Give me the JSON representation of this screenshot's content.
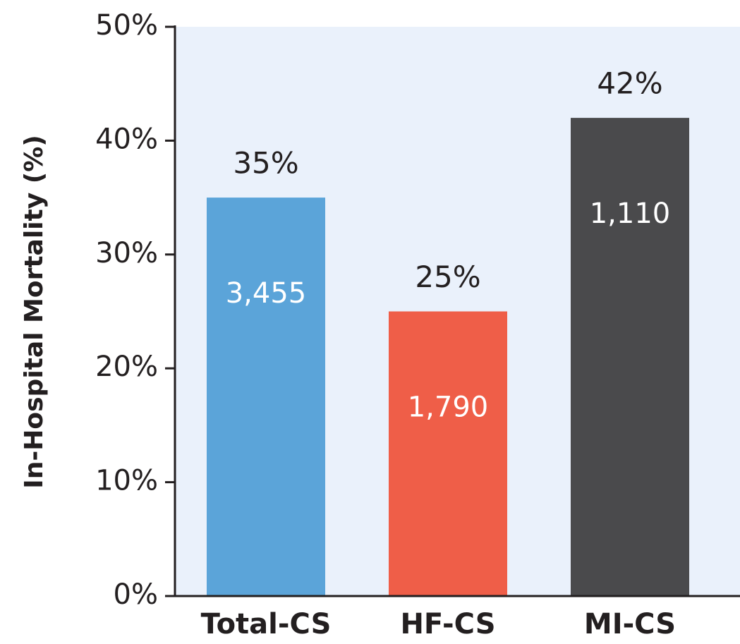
{
  "chart_data": {
    "type": "bar",
    "y_label": "In-Hospital Mortality (%)",
    "categories": [
      "Total-CS",
      "HF-CS",
      "MI-CS"
    ],
    "values": [
      35,
      25,
      42
    ],
    "value_labels": [
      "35%",
      "25%",
      "42%"
    ],
    "counts": [
      3455,
      1790,
      1110
    ],
    "count_labels": [
      "3,455",
      "1,790",
      "1,110"
    ],
    "colors": [
      "#5ba4d9",
      "#ef5e48",
      "#4a4a4c"
    ],
    "ylim": [
      0,
      50
    ],
    "yticks": [
      {
        "value": 0,
        "label": "0%"
      },
      {
        "value": 10,
        "label": "10%"
      },
      {
        "value": 20,
        "label": "20%"
      },
      {
        "value": 30,
        "label": "30%"
      },
      {
        "value": 40,
        "label": "40%"
      },
      {
        "value": 50,
        "label": "50%"
      }
    ]
  }
}
